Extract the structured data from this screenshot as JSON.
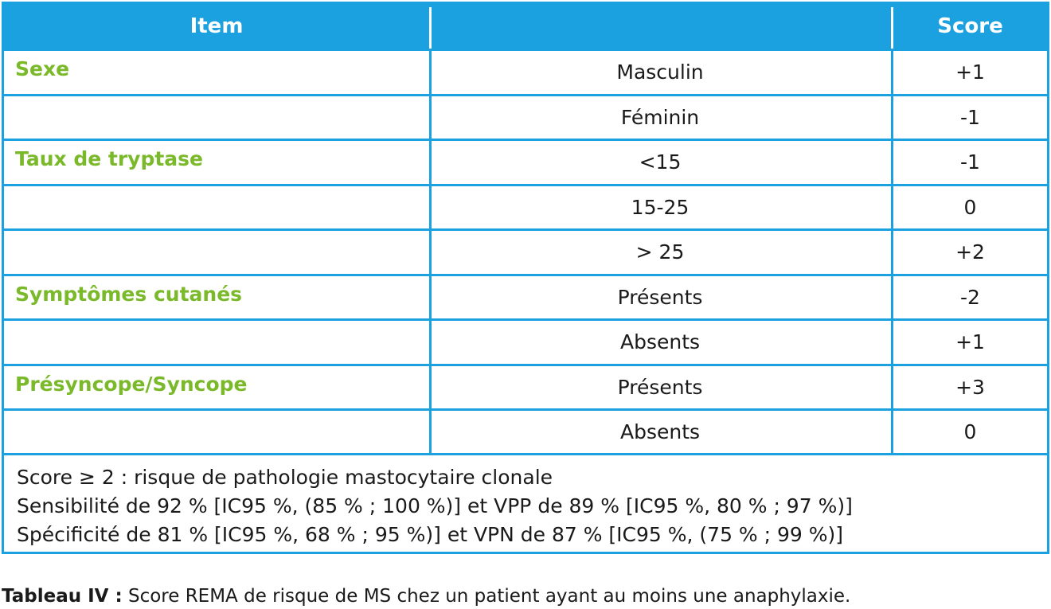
{
  "table": {
    "headers": {
      "item": "Item",
      "value": "",
      "score": "Score"
    },
    "rows": [
      {
        "item": "Sexe",
        "value": "Masculin",
        "score": "+1"
      },
      {
        "item": "",
        "value": "Féminin",
        "score": "-1"
      },
      {
        "item": "Taux de tryptase",
        "value": "<15",
        "score": "-1"
      },
      {
        "item": "",
        "value": "15-25",
        "score": "0"
      },
      {
        "item": "",
        "value": "> 25",
        "score": "+2"
      },
      {
        "item": "Symptômes cutanés",
        "value": "Présents",
        "score": "-2"
      },
      {
        "item": "",
        "value": "Absents",
        "score": "+1"
      },
      {
        "item": "Présyncope/Syncope",
        "value": "Présents",
        "score": "+3"
      },
      {
        "item": "",
        "value": "Absents",
        "score": "0"
      }
    ],
    "notes": [
      "Score ≥ 2 : risque de pathologie mastocytaire clonale",
      "Sensibilité de 92 % [IC95 %, (85 % ; 100 %)] et VPP de 89 % [IC95 %, 80 % ; 97 %)]",
      "Spécificité de 81 % [IC95 %, 68 % ; 95 %)] et VPN de 87 % [IC95 %, (75 % ; 99 %)]"
    ]
  },
  "caption": {
    "label": "Tableau IV :",
    "text": " Score REMA de risque de MS chez un patient ayant au moins une anaphylaxie."
  },
  "colors": {
    "header_bg": "#1ba0e0",
    "item_text": "#7ab929",
    "border": "#1ba0e0"
  }
}
